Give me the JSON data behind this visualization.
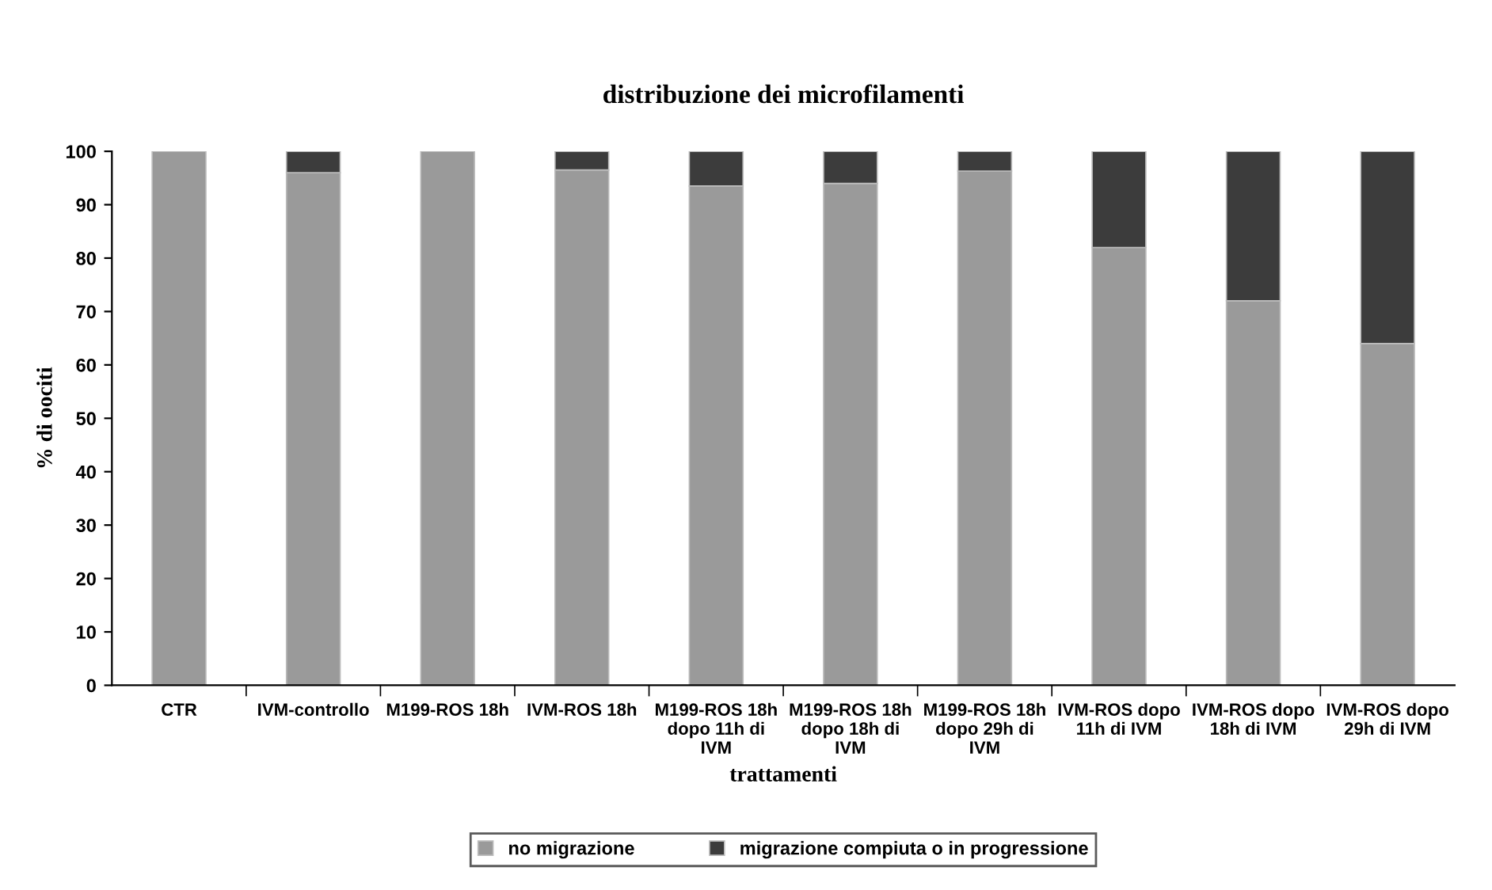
{
  "chart_data": {
    "type": "bar",
    "stacked": true,
    "title": "distribuzione dei microfilamenti",
    "xlabel": "trattamenti",
    "ylabel": "% di oociti",
    "categories": [
      "CTR",
      "IVM-controllo",
      "M199-ROS 18h",
      "IVM-ROS 18h",
      "M199-ROS 18h dopo 11h di IVM",
      "M199-ROS 18h dopo 18h di IVM",
      "M199-ROS 18h dopo 29h di IVM",
      "IVM-ROS dopo 11h di IVM",
      "IVM-ROS dopo 18h di IVM",
      "IVM-ROS dopo 29h di IVM"
    ],
    "series": [
      {
        "name": "no migrazione",
        "color": "#9a9a9a",
        "values": [
          100,
          96,
          100,
          96.5,
          93.5,
          94,
          96.3,
          82,
          72,
          64
        ]
      },
      {
        "name": "migrazione compiuta o in progressione",
        "color": "#3c3c3c",
        "values": [
          0,
          4,
          0,
          3.5,
          6.5,
          6,
          3.7,
          18,
          28,
          36
        ]
      }
    ],
    "ylim": [
      0,
      100
    ],
    "yticks": [
      0,
      10,
      20,
      30,
      40,
      50,
      60,
      70,
      80,
      90,
      100
    ],
    "grid": false,
    "legend": "bottom"
  }
}
